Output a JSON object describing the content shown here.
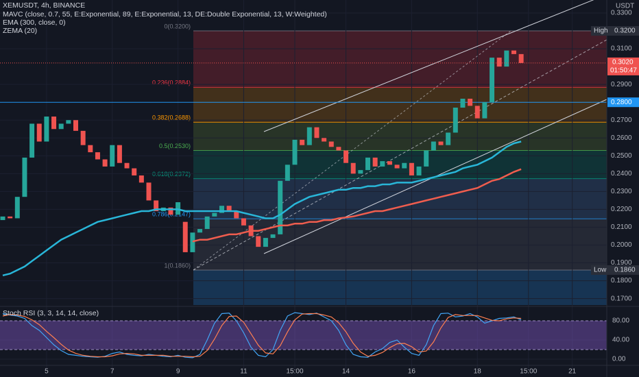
{
  "chart_data": [
    {
      "type": "candlestick",
      "title": "XEMUSDT, 4h, BINANCE",
      "indicators": [
        "MAVC (close, 0.7, 55, E:Exponential, 89, E:Exponential, 13, DE:Double Exponential, 13, W:Weighted)",
        "EMA (300, close, 0)",
        "ZEMA (20)"
      ],
      "currency": "USDT",
      "categories": [
        null,
        null,
        null,
        null,
        null,
        null,
        "5",
        null,
        null,
        null,
        null,
        null,
        null,
        null,
        null,
        "7",
        null,
        null,
        null,
        null,
        null,
        null,
        null,
        null,
        "9",
        null,
        null,
        null,
        null,
        null,
        null,
        null,
        null,
        "11",
        null,
        null,
        null,
        null,
        null,
        null,
        "15:00",
        null,
        null,
        null,
        null,
        null,
        null,
        "14",
        null,
        null,
        null,
        null,
        null,
        null,
        null,
        null,
        "16",
        null,
        null,
        null,
        null,
        null,
        null,
        null,
        null,
        "18",
        null,
        null,
        null,
        null,
        null,
        null,
        "15:00",
        null,
        null,
        null,
        null,
        null,
        "21",
        null,
        null,
        null,
        null
      ],
      "open": [
        0.214,
        0.216,
        0.215,
        0.227,
        0.249,
        0.268,
        0.258,
        0.272,
        0.265,
        0.268,
        0.27,
        0.264,
        0.256,
        0.252,
        0.248,
        0.244,
        0.256,
        0.246,
        0.243,
        0.239,
        0.235,
        0.225,
        0.219,
        0.221,
        0.217,
        0.213,
        0.196,
        0.207,
        0.209,
        0.216,
        0.218,
        0.222,
        0.219,
        0.215,
        0.211,
        0.205,
        0.199,
        0.204,
        0.206,
        0.236,
        0.245,
        0.259,
        0.256,
        0.266,
        0.26,
        0.258,
        0.255,
        0.253,
        0.246,
        0.24,
        0.242,
        0.249,
        0.244,
        0.247,
        0.245,
        0.243,
        0.246,
        0.239,
        0.244,
        0.253,
        0.258,
        0.256,
        0.263,
        0.277,
        0.282,
        0.278,
        0.271,
        0.28,
        0.305,
        0.3,
        0.309,
        0.307,
        null,
        null,
        null,
        null,
        null,
        null,
        null,
        null,
        null,
        null,
        null
      ],
      "high": {
        "label": "High",
        "price": "0.3200",
        "value": 0.32
      },
      "low": {
        "label": "Low",
        "price": "0.1860",
        "value": 0.186
      },
      "close": [
        0.216,
        0.215,
        0.227,
        0.249,
        0.268,
        0.258,
        0.272,
        0.265,
        0.268,
        0.27,
        0.264,
        0.256,
        0.252,
        0.248,
        0.244,
        0.256,
        0.246,
        0.243,
        0.239,
        0.235,
        0.225,
        0.219,
        0.221,
        0.217,
        0.224,
        0.196,
        0.207,
        0.209,
        0.216,
        0.218,
        0.222,
        0.219,
        0.215,
        0.211,
        0.205,
        0.199,
        0.204,
        0.206,
        0.236,
        0.245,
        0.259,
        0.256,
        0.266,
        0.26,
        0.258,
        0.255,
        0.253,
        0.246,
        0.24,
        0.242,
        0.249,
        0.244,
        0.247,
        0.245,
        0.243,
        0.246,
        0.239,
        0.244,
        0.253,
        0.258,
        0.256,
        0.263,
        0.277,
        0.282,
        0.278,
        0.271,
        0.28,
        0.305,
        0.3,
        0.309,
        0.307,
        0.302,
        null,
        null,
        null,
        null,
        null,
        null,
        null,
        null,
        null,
        null,
        null
      ],
      "up_color": "#26a69a",
      "down_color": "#ef5350",
      "lines": [
        {
          "color": "#29b6d8",
          "values": [
            0.183,
            0.184,
            0.186,
            0.188,
            0.191,
            0.194,
            0.197,
            0.2,
            0.203,
            0.205,
            0.207,
            0.209,
            0.211,
            0.213,
            0.214,
            0.215,
            0.216,
            0.217,
            0.218,
            0.219,
            0.219,
            0.22,
            0.22,
            0.22,
            0.22,
            0.219,
            0.219,
            0.219,
            0.219,
            0.219,
            0.219,
            0.219,
            0.219,
            0.218,
            0.217,
            0.216,
            0.215,
            0.215,
            0.217,
            0.22,
            0.223,
            0.225,
            0.227,
            0.228,
            0.229,
            0.23,
            0.231,
            0.231,
            0.232,
            0.232,
            0.233,
            0.233,
            0.234,
            0.234,
            0.235,
            0.235,
            0.235,
            0.236,
            0.237,
            0.238,
            0.239,
            0.24,
            0.241,
            0.243,
            0.244,
            0.245,
            0.247,
            0.249,
            0.252,
            0.255,
            0.257,
            0.258,
            null,
            null,
            null,
            null,
            null,
            null,
            null,
            null,
            null,
            null,
            null
          ]
        },
        {
          "color": "#f05d4e",
          "values": [
            null,
            null,
            null,
            null,
            null,
            null,
            null,
            null,
            null,
            null,
            null,
            null,
            null,
            null,
            null,
            null,
            null,
            null,
            null,
            null,
            null,
            null,
            null,
            null,
            null,
            null,
            0.202,
            0.203,
            0.203,
            0.204,
            0.205,
            0.206,
            0.206,
            0.207,
            0.208,
            0.208,
            0.209,
            0.21,
            0.211,
            0.211,
            0.212,
            0.212,
            0.213,
            0.213,
            0.214,
            0.214,
            0.215,
            0.2155,
            0.216,
            0.217,
            0.218,
            0.219,
            0.219,
            0.22,
            0.221,
            0.222,
            0.223,
            0.224,
            0.225,
            0.226,
            0.227,
            0.228,
            0.229,
            0.23,
            0.231,
            0.232,
            0.234,
            0.236,
            0.237,
            0.239,
            0.241,
            0.2425,
            null,
            null,
            null,
            null,
            null,
            null,
            null,
            null,
            null,
            null,
            null
          ]
        }
      ],
      "ylim": [
        0.1664,
        0.3373
      ],
      "yticks": [
        {
          "value": 0.17,
          "label": "0.1700"
        },
        {
          "value": 0.18,
          "label": "0.1800"
        },
        {
          "value": 0.19,
          "label": "0.1900"
        },
        {
          "value": 0.2,
          "label": "0.2000"
        },
        {
          "value": 0.21,
          "label": "0.2100"
        },
        {
          "value": 0.22,
          "label": "0.2200"
        },
        {
          "value": 0.23,
          "label": "0.2300"
        },
        {
          "value": 0.24,
          "label": "0.2400"
        },
        {
          "value": 0.25,
          "label": "0.2500"
        },
        {
          "value": 0.26,
          "label": "0.2600"
        },
        {
          "value": 0.27,
          "label": "0.2700"
        },
        {
          "value": 0.29,
          "label": "0.2900"
        },
        {
          "value": 0.31,
          "label": "0.3100"
        },
        {
          "value": 0.33,
          "label": "0.3300"
        }
      ],
      "fib": [
        {
          "label": "0(0.3200)",
          "value": 0.32
        },
        {
          "label": "0.236(0.2884)",
          "value": 0.2884
        },
        {
          "label": "0.382(0.2688)",
          "value": 0.2688
        },
        {
          "label": "0.5(0.2530)",
          "value": 0.253
        },
        {
          "label": "0.618(0.2372)",
          "value": 0.2372
        },
        {
          "label": "0.786(0.2147)",
          "value": 0.2147
        },
        {
          "label": "1(0.1860)",
          "value": 0.186
        }
      ],
      "level": {
        "value": 0.28,
        "label": "0.2800"
      },
      "last": {
        "value": 0.302,
        "label": "0.3020",
        "countdown": "01:50:47"
      }
    },
    {
      "type": "line",
      "title": "Stoch RSI (3, 3, 14, 14, close)",
      "series": [
        {
          "color": "#42a5f5",
          "values": [
            95,
            92,
            90,
            85,
            70,
            60,
            45,
            30,
            18,
            10,
            8,
            6,
            5,
            4,
            6,
            12,
            15,
            10,
            8,
            7,
            10,
            8,
            6,
            5,
            8,
            4,
            3,
            10,
            40,
            75,
            95,
            96,
            80,
            55,
            25,
            8,
            5,
            20,
            60,
            90,
            97,
            95,
            93,
            96,
            88,
            80,
            60,
            30,
            10,
            5,
            4,
            15,
            22,
            35,
            40,
            25,
            12,
            8,
            30,
            70,
            95,
            96,
            88,
            90,
            95,
            88,
            75,
            80,
            85,
            86,
            88,
            82,
            null,
            null,
            null,
            null,
            null,
            null,
            null,
            null,
            null,
            null,
            null
          ]
        },
        {
          "color": "#ff7f50",
          "values": [
            90,
            93,
            92,
            89,
            82,
            72,
            58,
            45,
            31,
            19,
            12,
            8,
            6,
            5,
            5,
            7,
            11,
            12,
            11,
            8,
            8,
            8,
            8,
            6,
            6,
            6,
            5,
            6,
            18,
            42,
            70,
            89,
            90,
            77,
            53,
            29,
            13,
            11,
            28,
            57,
            82,
            94,
            95,
            95,
            92,
            88,
            76,
            57,
            33,
            15,
            6,
            8,
            14,
            24,
            32,
            33,
            26,
            15,
            17,
            36,
            65,
            87,
            93,
            91,
            91,
            91,
            86,
            81,
            80,
            84,
            86,
            85,
            null,
            null,
            null,
            null,
            null,
            null,
            null,
            null,
            null,
            null,
            null
          ]
        }
      ],
      "ylim": [
        -22.9,
        110
      ],
      "yticks": [
        {
          "value": 0,
          "label": "0.00"
        },
        {
          "value": 40,
          "label": "40.00"
        },
        {
          "value": 80,
          "label": "80.00"
        }
      ],
      "band": [
        20,
        80
      ]
    }
  ]
}
